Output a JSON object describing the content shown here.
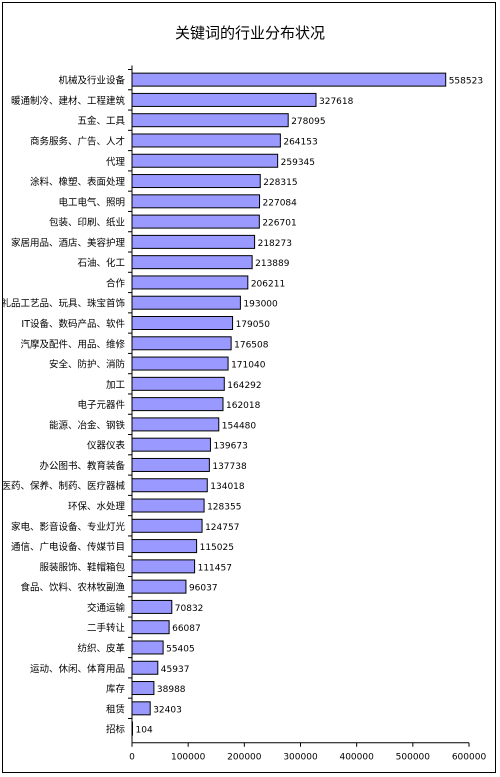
{
  "chart_data": {
    "type": "bar",
    "orientation": "horizontal",
    "title": "关键词的行业分布状况",
    "xlabel": "",
    "ylabel": "",
    "xlim": [
      0,
      600000
    ],
    "xticks": [
      0,
      100000,
      200000,
      300000,
      400000,
      500000,
      600000
    ],
    "tick_labels": [
      "0",
      "100000",
      "200000",
      "300000",
      "400000",
      "500000",
      "600000"
    ],
    "grid": false,
    "legend": "none",
    "bar_color": "#9999ff",
    "bar_edge_color": "#000000",
    "categories": [
      "机械及行业设备",
      "暖通制冷、建材、工程建筑",
      "五金、工具",
      "商务服务、广告、人才",
      "代理",
      "涂料、橡塑、表面处理",
      "电工电气、照明",
      "包装、印刷、纸业",
      "家居用品、酒店、美容护理",
      "石油、化工",
      "合作",
      "礼品工艺品、玩具、珠宝首饰",
      "IT设备、数码产品、软件",
      "汽摩及配件、用品、维修",
      "安全、防护、消防",
      "加工",
      "电子元器件",
      "能源、冶金、钢铁",
      "仪器仪表",
      "办公图书、教育装备",
      "医药、保养、制药、医疗器械",
      "环保、水处理",
      "家电、影音设备、专业灯光",
      "通信、广电设备、传媒节目",
      "服装服饰、鞋帽箱包",
      "食品、饮料、农林牧副渔",
      "交通运输",
      "二手转让",
      "纺织、皮革",
      "运动、休闲、体育用品",
      "库存",
      "租赁",
      "招标"
    ],
    "values": [
      558523,
      327618,
      278095,
      264153,
      259345,
      228315,
      227084,
      226701,
      218273,
      213889,
      206211,
      193000,
      179050,
      176508,
      171040,
      164292,
      162018,
      154480,
      139673,
      137738,
      134018,
      128355,
      124757,
      115025,
      111457,
      96037,
      70832,
      66087,
      55405,
      45937,
      38988,
      32403,
      104
    ],
    "value_labels": [
      "558523",
      "327618",
      "278095",
      "264153",
      "259345",
      "228315",
      "227084",
      "226701",
      "218273",
      "213889",
      "206211",
      "193000",
      "179050",
      "176508",
      "171040",
      "164292",
      "162018",
      "154480",
      "139673",
      "137738",
      "134018",
      "128355",
      "124757",
      "115025",
      "111457",
      "96037",
      "70832",
      "66087",
      "55405",
      "45937",
      "38988",
      "32403",
      "104"
    ]
  }
}
